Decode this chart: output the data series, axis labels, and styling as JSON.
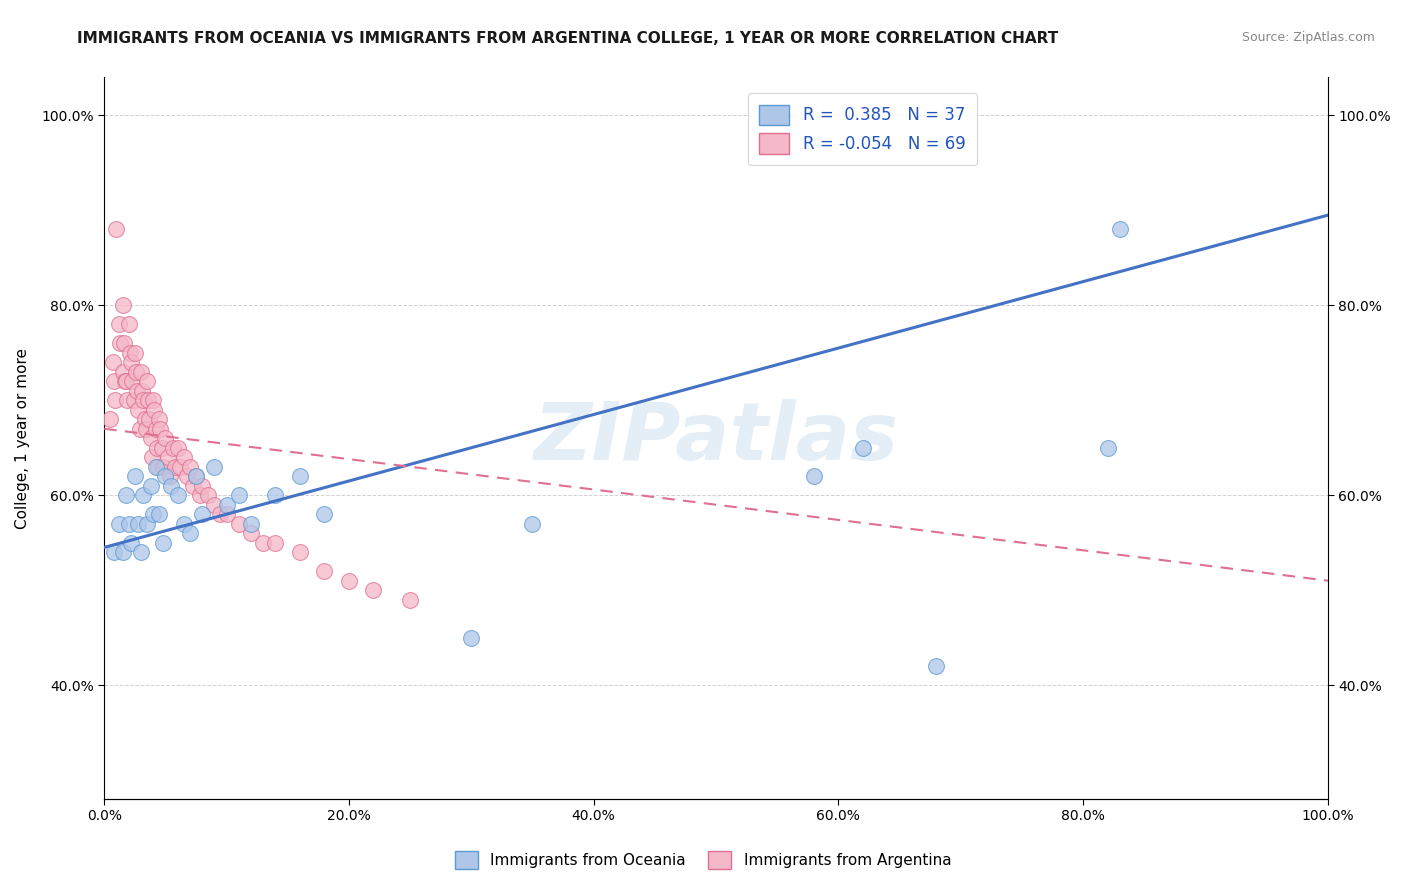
{
  "title": "IMMIGRANTS FROM OCEANIA VS IMMIGRANTS FROM ARGENTINA COLLEGE, 1 YEAR OR MORE CORRELATION CHART",
  "source_text": "Source: ZipAtlas.com",
  "ylabel": "College, 1 year or more",
  "xlim": [
    0.0,
    1.0
  ],
  "ylim": [
    0.28,
    1.04
  ],
  "xtick_labels": [
    "0.0%",
    "20.0%",
    "40.0%",
    "60.0%",
    "80.0%",
    "100.0%"
  ],
  "xtick_vals": [
    0.0,
    0.2,
    0.4,
    0.6,
    0.8,
    1.0
  ],
  "ytick_labels": [
    "40.0%",
    "60.0%",
    "80.0%",
    "100.0%"
  ],
  "ytick_vals": [
    0.4,
    0.6,
    0.8,
    1.0
  ],
  "blue_R": 0.385,
  "blue_N": 37,
  "pink_R": -0.054,
  "pink_N": 69,
  "blue_color": "#aec6e8",
  "pink_color": "#f4b8c8",
  "blue_edge_color": "#5b9bd5",
  "pink_edge_color": "#e07090",
  "blue_line_color": "#4472c4",
  "pink_line_color": "#e07090",
  "watermark": "ZIPatlas",
  "legend_label_blue": "Immigrants from Oceania",
  "legend_label_pink": "Immigrants from Argentina",
  "blue_scatter_x": [
    0.008,
    0.012,
    0.015,
    0.018,
    0.02,
    0.022,
    0.025,
    0.028,
    0.03,
    0.032,
    0.035,
    0.038,
    0.04,
    0.042,
    0.045,
    0.048,
    0.05,
    0.055,
    0.06,
    0.065,
    0.07,
    0.075,
    0.08,
    0.09,
    0.1,
    0.11,
    0.12,
    0.14,
    0.16,
    0.18,
    0.3,
    0.35,
    0.58,
    0.62,
    0.68,
    0.82,
    0.83
  ],
  "blue_scatter_y": [
    0.54,
    0.57,
    0.54,
    0.6,
    0.57,
    0.55,
    0.62,
    0.57,
    0.54,
    0.6,
    0.57,
    0.61,
    0.58,
    0.63,
    0.58,
    0.55,
    0.62,
    0.61,
    0.6,
    0.57,
    0.56,
    0.62,
    0.58,
    0.63,
    0.59,
    0.6,
    0.57,
    0.6,
    0.62,
    0.58,
    0.45,
    0.57,
    0.62,
    0.65,
    0.42,
    0.65,
    0.88
  ],
  "pink_scatter_x": [
    0.005,
    0.007,
    0.008,
    0.009,
    0.01,
    0.012,
    0.013,
    0.015,
    0.015,
    0.016,
    0.017,
    0.018,
    0.019,
    0.02,
    0.021,
    0.022,
    0.023,
    0.024,
    0.025,
    0.026,
    0.027,
    0.028,
    0.029,
    0.03,
    0.031,
    0.032,
    0.033,
    0.034,
    0.035,
    0.036,
    0.037,
    0.038,
    0.039,
    0.04,
    0.041,
    0.042,
    0.043,
    0.044,
    0.045,
    0.046,
    0.047,
    0.048,
    0.05,
    0.052,
    0.054,
    0.056,
    0.058,
    0.06,
    0.062,
    0.065,
    0.068,
    0.07,
    0.073,
    0.075,
    0.078,
    0.08,
    0.085,
    0.09,
    0.095,
    0.1,
    0.11,
    0.12,
    0.13,
    0.14,
    0.16,
    0.18,
    0.2,
    0.22,
    0.25
  ],
  "pink_scatter_y": [
    0.68,
    0.74,
    0.72,
    0.7,
    0.88,
    0.78,
    0.76,
    0.8,
    0.73,
    0.76,
    0.72,
    0.72,
    0.7,
    0.78,
    0.75,
    0.74,
    0.72,
    0.7,
    0.75,
    0.73,
    0.71,
    0.69,
    0.67,
    0.73,
    0.71,
    0.7,
    0.68,
    0.67,
    0.72,
    0.7,
    0.68,
    0.66,
    0.64,
    0.7,
    0.69,
    0.67,
    0.65,
    0.63,
    0.68,
    0.67,
    0.65,
    0.63,
    0.66,
    0.64,
    0.62,
    0.65,
    0.63,
    0.65,
    0.63,
    0.64,
    0.62,
    0.63,
    0.61,
    0.62,
    0.6,
    0.61,
    0.6,
    0.59,
    0.58,
    0.58,
    0.57,
    0.56,
    0.55,
    0.55,
    0.54,
    0.52,
    0.51,
    0.5,
    0.49
  ],
  "grid_color": "#cccccc",
  "background_color": "#ffffff",
  "title_fontsize": 11,
  "axis_label_fontsize": 11,
  "tick_fontsize": 10,
  "blue_line_x0": 0.0,
  "blue_line_x1": 1.0,
  "blue_line_y0": 0.545,
  "blue_line_y1": 0.895,
  "pink_line_x0": 0.0,
  "pink_line_x1": 1.0,
  "pink_line_y0": 0.67,
  "pink_line_y1": 0.51
}
